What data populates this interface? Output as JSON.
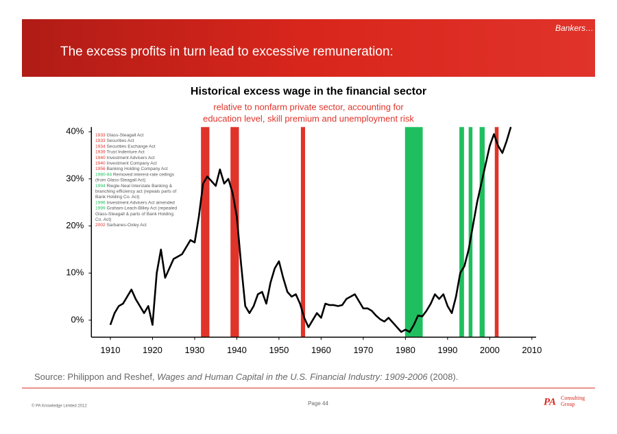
{
  "slide": {
    "tag": "Bankers…",
    "title": "The excess profits in turn lead to excessive remuneration:",
    "source": [
      "Source: Philippon and Reshef, ",
      "Wages and Human Capital in the U.S. Financial Industry: 1909-2006",
      " (2008)."
    ],
    "copyright": "© PA Knowledge Limited 2012",
    "page": "Page 44",
    "logo": [
      "PA",
      "Consulting",
      "Group"
    ]
  },
  "chart_data": {
    "type": "line",
    "title": "Historical excess wage in the financial sector",
    "subtitle": [
      "relative to nonfarm private sector, accounting for",
      "education level, skill premium and unemployment risk"
    ],
    "color": "#000000",
    "x": [
      1910,
      1911,
      1912,
      1913,
      1914,
      1915,
      1916,
      1917,
      1918,
      1919,
      1920,
      1921,
      1922,
      1923,
      1924,
      1925,
      1926,
      1927,
      1928,
      1929,
      1930,
      1931,
      1932,
      1933,
      1934,
      1935,
      1936,
      1937,
      1938,
      1939,
      1940,
      1941,
      1942,
      1943,
      1944,
      1945,
      1946,
      1947,
      1948,
      1949,
      1950,
      1951,
      1952,
      1953,
      1954,
      1955,
      1956,
      1957,
      1958,
      1959,
      1960,
      1961,
      1962,
      1963,
      1964,
      1965,
      1966,
      1967,
      1968,
      1969,
      1970,
      1971,
      1972,
      1973,
      1974,
      1975,
      1976,
      1977,
      1978,
      1979,
      1980,
      1981,
      1982,
      1983,
      1984,
      1985,
      1986,
      1987,
      1988,
      1989,
      1990,
      1991,
      1992,
      1993,
      1994,
      1995,
      1996,
      1997,
      1998,
      1999,
      2000,
      2001,
      2002,
      2003,
      2004,
      2005
    ],
    "values": [
      -1,
      1.5,
      3,
      3.5,
      5,
      6.5,
      4.5,
      3,
      1.5,
      3,
      -1,
      10,
      15,
      9,
      11,
      13,
      13.5,
      14,
      15.5,
      17,
      16.5,
      22,
      29,
      30.5,
      29.5,
      28.5,
      32,
      29,
      30,
      27,
      22,
      12,
      3,
      1.5,
      3,
      5.5,
      6,
      3.5,
      8,
      11,
      12.5,
      9,
      6,
      5,
      5.5,
      3.5,
      0.5,
      -1.5,
      0,
      1.5,
      0.5,
      3.5,
      3.2,
      3.2,
      3,
      3.2,
      4.5,
      5,
      5.5,
      4,
      2.5,
      2.5,
      2,
      1,
      0.2,
      -0.3,
      0.5,
      -0.5,
      -1.5,
      -2.5,
      -2,
      -2.5,
      -1,
      1,
      0.8,
      2,
      3.5,
      5.5,
      4.5,
      5.5,
      3,
      1.5,
      5,
      10,
      11.5,
      15,
      20,
      25,
      29,
      33,
      37,
      39.5,
      37,
      35.5,
      38,
      41
    ],
    "xlim": [
      1905.5,
      2011
    ],
    "xticks": [
      1910,
      1920,
      1930,
      1940,
      1950,
      1960,
      1970,
      1980,
      1990,
      2000,
      2010
    ],
    "ylim": [
      -3.6,
      41
    ],
    "yticks": [
      {
        "value": 0,
        "label": "0%"
      },
      {
        "value": 10,
        "label": "10%"
      },
      {
        "value": 20,
        "label": "20%"
      },
      {
        "value": 30,
        "label": "30%"
      },
      {
        "value": 40,
        "label": "40%"
      }
    ],
    "shaded_regions": [
      {
        "x": [
          1931.5,
          1933.5
        ],
        "color": "#e0332a"
      },
      {
        "x": [
          1938.5,
          1940.5
        ],
        "color": "#e0332a"
      },
      {
        "x": [
          1955.2,
          1956.2
        ],
        "color": "#e0332a"
      },
      {
        "x": [
          1979.9,
          1984.1
        ],
        "color": "#1fbf5f"
      },
      {
        "x": [
          1992.8,
          1993.9
        ],
        "color": "#1fbf5f"
      },
      {
        "x": [
          1995,
          1995.9
        ],
        "color": "#1fbf5f"
      },
      {
        "x": [
          1997.6,
          1998.8
        ],
        "color": "#1fbf5f"
      },
      {
        "x": [
          2001.2,
          2002.1
        ],
        "color": "#e0332a"
      }
    ],
    "events": [
      {
        "year": "1933",
        "color": "#e0332a",
        "text": [
          "Glass-Steagall Act"
        ]
      },
      {
        "year": "1933",
        "color": "#e0332a",
        "text": [
          "Securities Act"
        ]
      },
      {
        "year": "1934",
        "color": "#e0332a",
        "text": [
          "Securities Exchange Act"
        ]
      },
      {
        "year": "1939",
        "color": "#e0332a",
        "text": [
          "Trust Indenture Act"
        ]
      },
      {
        "year": "1940",
        "color": "#e0332a",
        "text": [
          "Investment Advisers Act"
        ]
      },
      {
        "year": "1940",
        "color": "#e0332a",
        "text": [
          "Investment Company Act"
        ]
      },
      {
        "year": "1956",
        "color": "#e0332a",
        "text": [
          "Banking Holding Company Act"
        ]
      },
      {
        "year": "1980-84",
        "color": "#1fbf5f",
        "text": [
          "Removed interest-rate ceilings",
          "(from Glass-Steagall Act)"
        ]
      },
      {
        "year": "1994",
        "color": "#1fbf5f",
        "text": [
          "Riegle-Neal Interstate Banking &",
          "branching efficiency act (repeals parts of",
          "Bank Holding Co. Act)"
        ]
      },
      {
        "year": "1996",
        "color": "#1fbf5f",
        "text": [
          "Investment Advisers Act amended"
        ]
      },
      {
        "year": "1999",
        "color": "#1fbf5f",
        "text": [
          "Graham-Leach-Bliley Act (repealed",
          "Glass-Steagall & parts of Bank Holding",
          "Co. Act)"
        ]
      },
      {
        "year": "2002",
        "color": "#e0332a",
        "text": [
          "Sarbanes-Oxley Act"
        ]
      }
    ]
  }
}
